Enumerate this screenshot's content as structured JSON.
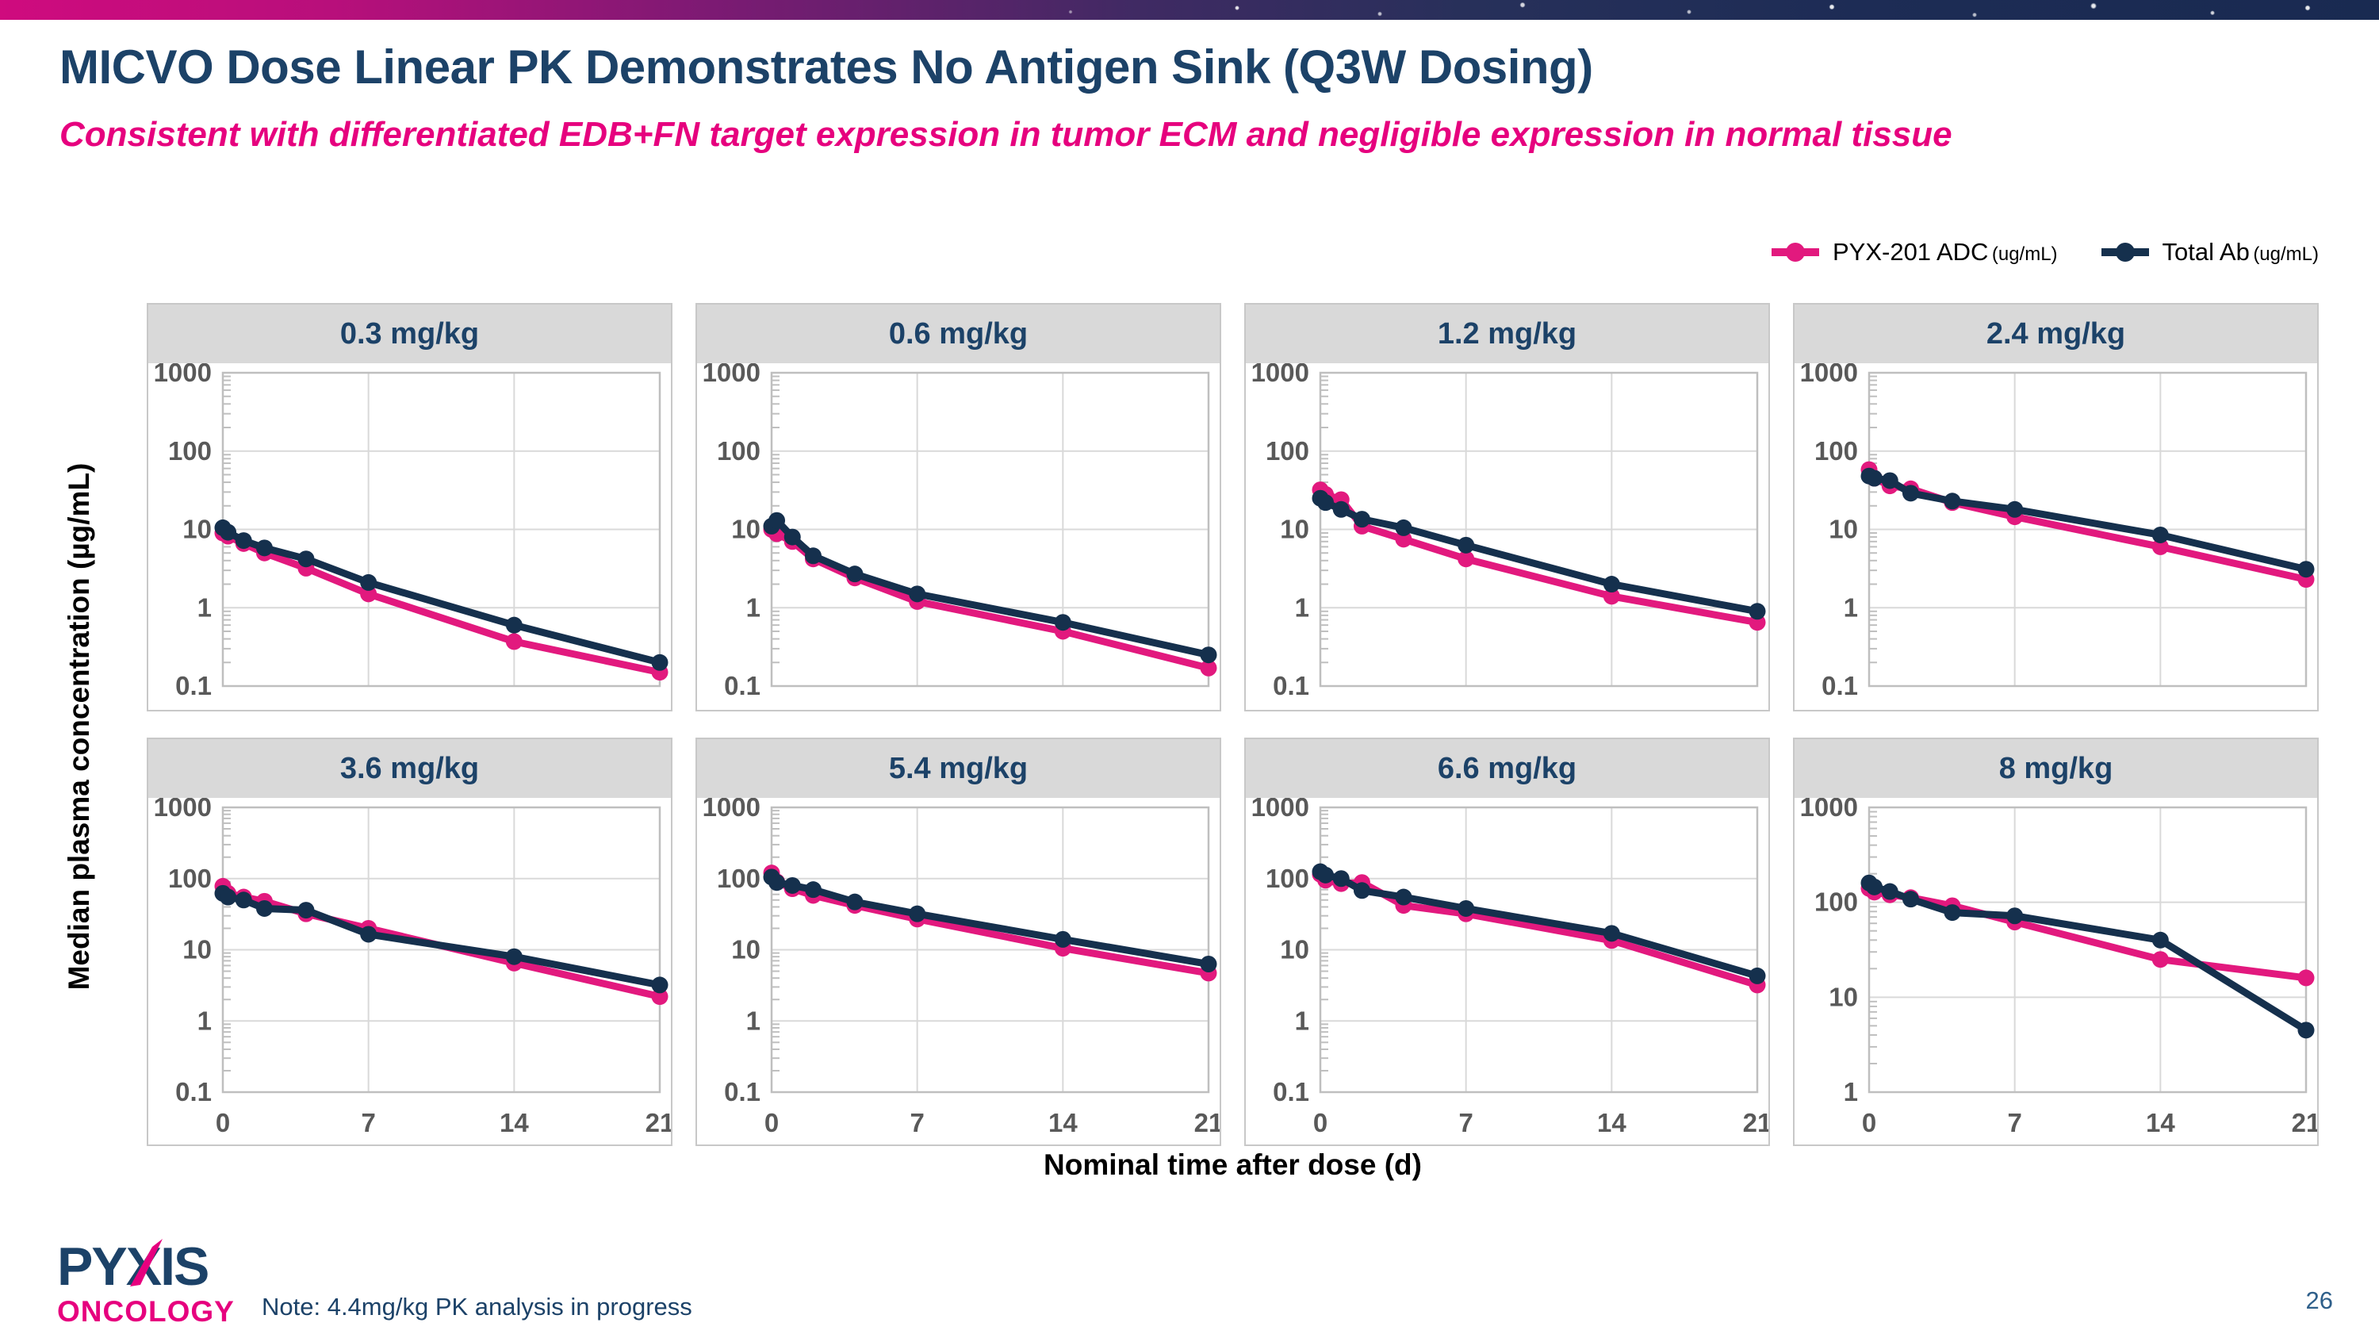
{
  "slide": {
    "title": "MICVO Dose Linear PK Demonstrates No Antigen Sink (Q3W Dosing)",
    "subtitle": "Consistent with differentiated EDB+FN target expression in tumor ECM and negligible expression in normal tissue",
    "note": "Note: 4.4mg/kg PK analysis in progress",
    "page_number": "26",
    "logo": {
      "line1": "PYXIS",
      "line2": "ONCOLOGY"
    }
  },
  "legend": {
    "items": [
      {
        "label": "PYX-201 ADC",
        "unit": "(ug/mL)",
        "color": "#e2197e"
      },
      {
        "label": "Total Ab",
        "unit": "(ug/mL)",
        "color": "#15304d"
      }
    ]
  },
  "colors": {
    "title_navy": "#1c4268",
    "subtitle_pink": "#e6007e",
    "adc_pink": "#e2197e",
    "total_ab_navy": "#15304d",
    "panel_header_bg": "#d9d9d9",
    "grid_line": "#d9d9d9",
    "plot_border": "#bfbfbf",
    "tick_label": "#595959"
  },
  "chart_data": {
    "type": "line",
    "x_days": [
      0,
      0.25,
      1,
      2,
      4,
      7,
      14,
      21
    ],
    "x_ticks": [
      "0",
      "7",
      "14",
      "21"
    ],
    "x_tick_values": [
      0,
      7,
      14,
      21
    ],
    "xlabel": "Nominal time after dose (d)",
    "ylabel": "Median plasma concentration (µg/mL)",
    "series_names": [
      "PYX-201 ADC (ug/mL)",
      "Total Ab (ug/mL)"
    ],
    "series_colors": [
      "#e2197e",
      "#15304d"
    ],
    "legend_position": "top-right",
    "grid": true,
    "panels": [
      {
        "title": "0.3 mg/kg",
        "ylim": [
          0.1,
          1000
        ],
        "y_ticks": [
          "1000",
          "100",
          "10",
          "1",
          "0.1"
        ],
        "show_x_ticks": false,
        "series": [
          {
            "name": "PYX-201 ADC (ug/mL)",
            "values": [
              9,
              8.2,
              6.6,
              5,
              3.2,
              1.5,
              0.37,
              0.15
            ]
          },
          {
            "name": "Total Ab (ug/mL)",
            "values": [
              10.5,
              9.2,
              7.2,
              5.8,
              4.2,
              2.1,
              0.6,
              0.2
            ]
          }
        ]
      },
      {
        "title": "0.6 mg/kg",
        "ylim": [
          0.1,
          1000
        ],
        "y_ticks": [
          "1000",
          "100",
          "10",
          "1",
          "0.1"
        ],
        "show_x_ticks": false,
        "series": [
          {
            "name": "PYX-201 ADC (ug/mL)",
            "values": [
              10,
              8.8,
              7,
              4.2,
              2.4,
              1.2,
              0.5,
              0.17
            ]
          },
          {
            "name": "Total Ab (ug/mL)",
            "values": [
              11,
              13,
              8,
              4.6,
              2.7,
              1.5,
              0.65,
              0.25
            ]
          }
        ]
      },
      {
        "title": "1.2 mg/kg",
        "ylim": [
          0.1,
          1000
        ],
        "y_ticks": [
          "1000",
          "100",
          "10",
          "1",
          "0.1"
        ],
        "show_x_ticks": false,
        "series": [
          {
            "name": "PYX-201 ADC (ug/mL)",
            "values": [
              32,
              28,
              24,
              11,
              7.5,
              4.2,
              1.4,
              0.65
            ]
          },
          {
            "name": "Total Ab (ug/mL)",
            "values": [
              25,
              22,
              18,
              13.5,
              10.5,
              6.3,
              2,
              0.9
            ]
          }
        ]
      },
      {
        "title": "2.4 mg/kg",
        "ylim": [
          0.1,
          1000
        ],
        "y_ticks": [
          "1000",
          "100",
          "10",
          "1",
          "0.1"
        ],
        "show_x_ticks": false,
        "series": [
          {
            "name": "PYX-201 ADC (ug/mL)",
            "values": [
              58,
              45,
              36,
              33,
              22,
              14.5,
              6,
              2.3
            ]
          },
          {
            "name": "Total Ab (ug/mL)",
            "values": [
              48,
              45,
              42,
              29,
              23,
              18,
              8.5,
              3.1
            ]
          }
        ]
      },
      {
        "title": "3.6 mg/kg",
        "ylim": [
          0.1,
          1000
        ],
        "y_ticks": [
          "1000",
          "100",
          "10",
          "1",
          "0.1"
        ],
        "show_x_ticks": true,
        "series": [
          {
            "name": "PYX-201 ADC (ug/mL)",
            "values": [
              78,
              62,
              55,
              48,
              32,
              20,
              6.5,
              2.2
            ]
          },
          {
            "name": "Total Ab (ug/mL)",
            "values": [
              62,
              55,
              50,
              38,
              36,
              16.5,
              8,
              3.2
            ]
          }
        ]
      },
      {
        "title": "5.4 mg/kg",
        "ylim": [
          0.1,
          1000
        ],
        "y_ticks": [
          "1000",
          "100",
          "10",
          "1",
          "0.1"
        ],
        "show_x_ticks": true,
        "series": [
          {
            "name": "PYX-201 ADC (ug/mL)",
            "values": [
              120,
              90,
              72,
              58,
              42,
              27,
              10.5,
              4.7
            ]
          },
          {
            "name": "Total Ab (ug/mL)",
            "values": [
              105,
              88,
              80,
              70,
              47,
              32,
              14,
              6.3
            ]
          }
        ]
      },
      {
        "title": "6.6 mg/kg",
        "ylim": [
          0.1,
          1000
        ],
        "y_ticks": [
          "1000",
          "100",
          "10",
          "1",
          "0.1"
        ],
        "show_x_ticks": true,
        "series": [
          {
            "name": "PYX-201 ADC (ug/mL)",
            "values": [
              115,
              95,
              85,
              88,
              42,
              32,
              13.5,
              3.2
            ]
          },
          {
            "name": "Total Ab (ug/mL)",
            "values": [
              125,
              112,
              100,
              68,
              55,
              38,
              17,
              4.3
            ]
          }
        ]
      },
      {
        "title": "8 mg/kg",
        "ylim": [
          1,
          1000
        ],
        "y_ticks": [
          "1000",
          "100",
          "10",
          "1"
        ],
        "show_x_ticks": true,
        "series": [
          {
            "name": "PYX-201 ADC (ug/mL)",
            "values": [
              140,
              128,
              120,
              112,
              92,
              62,
              25,
              16
            ]
          },
          {
            "name": "Total Ab (ug/mL)",
            "values": [
              160,
              145,
              130,
              108,
              78,
              72,
              40,
              4.5
            ]
          }
        ]
      }
    ]
  }
}
